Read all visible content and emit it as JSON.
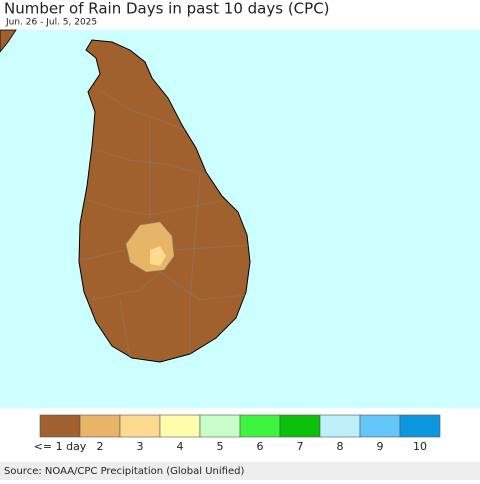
{
  "header": {
    "title": "Number of Rain Days in past 10 days (CPC)",
    "subtitle": "Jun. 26 - Jul. 5, 2025"
  },
  "legend": {
    "items": [
      {
        "label": "<= 1 day",
        "color": "#a0612f"
      },
      {
        "label": "2",
        "color": "#e8b466"
      },
      {
        "label": "3",
        "color": "#fcdb8e"
      },
      {
        "label": "4",
        "color": "#fffdac"
      },
      {
        "label": "5",
        "color": "#c8fdc8"
      },
      {
        "label": "6",
        "color": "#3ef43e"
      },
      {
        "label": "7",
        "color": "#0bbf0b"
      },
      {
        "label": "8",
        "color": "#bdeff9"
      },
      {
        "label": "9",
        "color": "#62c6f9"
      },
      {
        "label": "10",
        "color": "#0d97de"
      }
    ]
  },
  "footer": {
    "source": "Source: NOAA/CPC Precipitation (Global Unified)"
  }
}
